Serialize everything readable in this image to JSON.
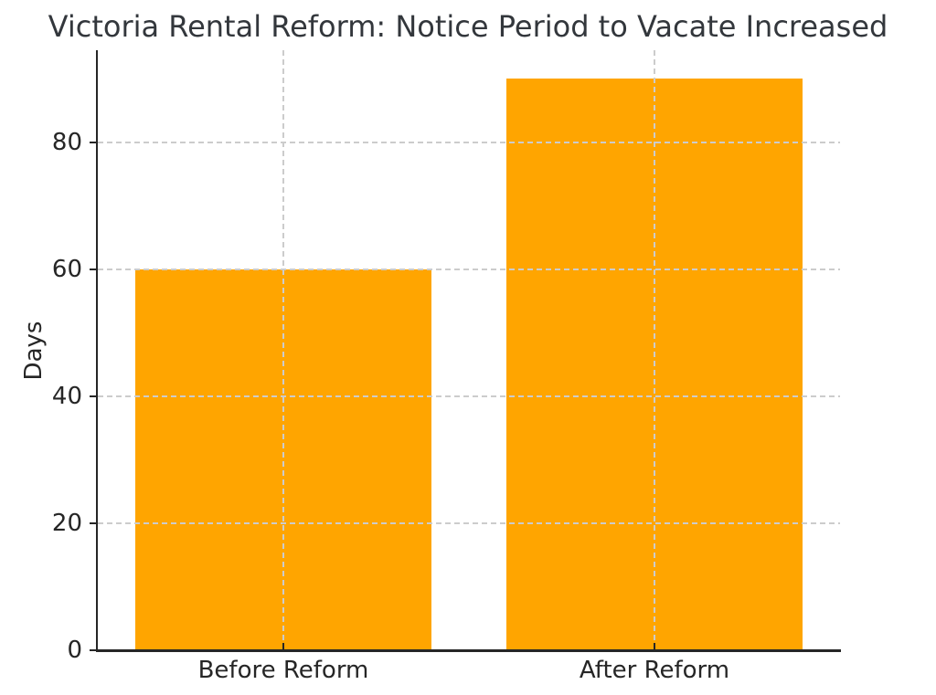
{
  "chart_data": {
    "type": "bar",
    "title": "Victoria Rental Reform: Notice Period to Vacate Increased",
    "categories": [
      "Before Reform",
      "After Reform"
    ],
    "values": [
      60,
      90
    ],
    "xlabel": "",
    "ylabel": "Days",
    "ylim": [
      0,
      94.5
    ],
    "yticks": [
      0,
      20,
      40,
      60,
      80
    ],
    "bar_width_fraction": 0.8,
    "grid": "dashed gridlines at y-ticks and category centers, drawn over bars",
    "legend_position": "none",
    "colors": {
      "bar": "#ffa500",
      "grid": "#cccccc",
      "spine": "#262626",
      "text": "#262626",
      "title_text": "#33373c",
      "background": "#ffffff"
    }
  }
}
